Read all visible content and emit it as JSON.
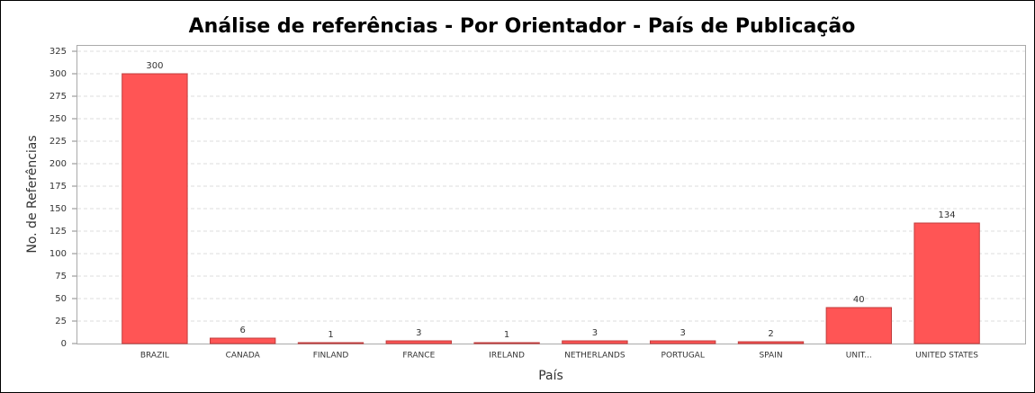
{
  "chart_data": {
    "type": "bar",
    "title": "Análise de referências - Por Orientador - País de Publicação",
    "x_label": "País",
    "y_label": "No. de Referências",
    "categories": [
      "BRAZIL",
      "CANADA",
      "FINLAND",
      "FRANCE",
      "IRELAND",
      "NETHERLANDS",
      "PORTUGAL",
      "SPAIN",
      "UNIT...",
      "UNITED STATES"
    ],
    "values": [
      300,
      6,
      1,
      3,
      1,
      3,
      3,
      2,
      40,
      134
    ],
    "color": "#ff5555",
    "ylim": [
      0,
      325
    ],
    "yticks": [
      0,
      25,
      50,
      75,
      100,
      125,
      150,
      175,
      200,
      225,
      250,
      275,
      300,
      325
    ],
    "grid": true
  }
}
